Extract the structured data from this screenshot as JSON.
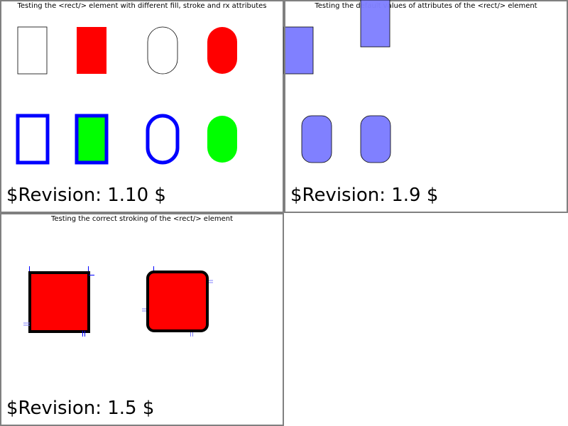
{
  "panels": [
    {
      "title": "Testing the <rect/> element with different fill, stroke and rx attributes",
      "revision": "$Revision: 1.10 $"
    },
    {
      "title": "Testing the default values of attributes of the <rect/> element",
      "revision": "$Revision: 1.9 $"
    },
    {
      "title": "Testing the correct stroking of the <rect/> element",
      "revision": "$Revision: 1.5 $"
    }
  ],
  "colors": {
    "red": "#ff0000",
    "green": "#00ff00",
    "blue": "#0000ff",
    "lightblue": "#8080ff",
    "border": "#808080"
  }
}
